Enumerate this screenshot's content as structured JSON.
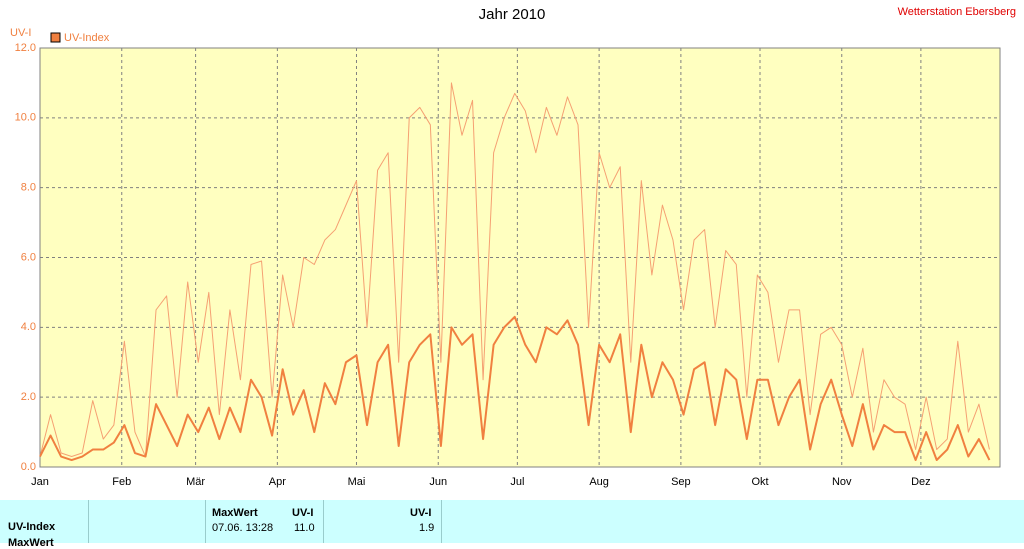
{
  "chart_data": {
    "type": "line",
    "title": "Jahr 2010",
    "station": "Wetterstation Ebersberg",
    "y_label": "UV-I",
    "x": [
      0,
      4,
      8,
      12,
      16,
      20,
      24,
      28,
      32,
      36,
      40,
      44,
      48,
      52,
      56,
      60,
      64,
      68,
      72,
      76,
      80,
      84,
      88,
      92,
      96,
      100,
      104,
      108,
      112,
      116,
      120,
      124,
      128,
      132,
      136,
      140,
      144,
      148,
      152,
      156,
      160,
      164,
      168,
      172,
      176,
      180,
      184,
      188,
      192,
      196,
      200,
      204,
      208,
      212,
      216,
      220,
      224,
      228,
      232,
      236,
      240,
      244,
      248,
      252,
      256,
      260,
      264,
      268,
      272,
      276,
      280,
      284,
      288,
      292,
      296,
      300,
      304,
      308,
      312,
      316,
      320,
      324,
      328,
      332,
      336,
      340,
      344,
      348,
      352,
      356,
      360
    ],
    "series": [
      {
        "name": "UV-Index",
        "color": "#f5a072",
        "width": 1,
        "values": [
          0.3,
          1.5,
          0.4,
          0.3,
          0.4,
          1.9,
          0.8,
          1.2,
          3.6,
          1.0,
          0.3,
          4.5,
          4.9,
          2.0,
          5.3,
          3.0,
          5.0,
          1.5,
          4.5,
          2.5,
          5.8,
          5.9,
          2.0,
          5.5,
          4.0,
          6.0,
          5.8,
          6.5,
          6.8,
          7.5,
          8.2,
          4.0,
          8.5,
          9.0,
          3.0,
          10.0,
          10.3,
          9.8,
          3.0,
          11.0,
          9.5,
          10.5,
          2.5,
          9.0,
          10.0,
          10.7,
          10.2,
          9.0,
          10.3,
          9.5,
          10.6,
          9.8,
          4.0,
          9.0,
          8.0,
          8.6,
          3.0,
          8.2,
          5.5,
          7.5,
          6.5,
          4.5,
          6.5,
          6.8,
          4.0,
          6.2,
          5.8,
          2.0,
          5.5,
          5.0,
          3.0,
          4.5,
          4.5,
          1.5,
          3.8,
          4.0,
          3.5,
          2.0,
          3.4,
          1.0,
          2.5,
          2.0,
          1.8,
          0.5,
          2.0,
          0.5,
          0.8,
          3.6,
          1.0,
          1.8,
          0.5
        ]
      },
      {
        "color": "#f08040",
        "width": 2,
        "values": [
          0.3,
          0.9,
          0.3,
          0.2,
          0.3,
          0.5,
          0.5,
          0.7,
          1.2,
          0.4,
          0.3,
          1.8,
          1.2,
          0.6,
          1.5,
          1.0,
          1.7,
          0.8,
          1.7,
          1.0,
          2.5,
          2.0,
          0.9,
          2.8,
          1.5,
          2.2,
          1.0,
          2.4,
          1.8,
          3.0,
          3.2,
          1.2,
          3.0,
          3.5,
          0.6,
          3.0,
          3.5,
          3.8,
          0.6,
          4.0,
          3.5,
          3.8,
          0.8,
          3.5,
          4.0,
          4.3,
          3.5,
          3.0,
          4.0,
          3.8,
          4.2,
          3.5,
          1.2,
          3.5,
          3.0,
          3.8,
          1.0,
          3.5,
          2.0,
          3.0,
          2.5,
          1.5,
          2.8,
          3.0,
          1.2,
          2.8,
          2.5,
          0.8,
          2.5,
          2.5,
          1.2,
          2.0,
          2.5,
          0.5,
          1.8,
          2.5,
          1.5,
          0.6,
          1.8,
          0.5,
          1.2,
          1.0,
          1.0,
          0.2,
          1.0,
          0.2,
          0.5,
          1.2,
          0.3,
          0.8,
          0.2
        ]
      }
    ],
    "xlim": [
      0,
      364
    ],
    "xticks": [
      {
        "value": 0,
        "label": "Jan"
      },
      {
        "value": 31,
        "label": "Feb"
      },
      {
        "value": 59,
        "label": "Mär"
      },
      {
        "value": 90,
        "label": "Apr"
      },
      {
        "value": 120,
        "label": "Mai"
      },
      {
        "value": 151,
        "label": "Jun"
      },
      {
        "value": 181,
        "label": "Jul"
      },
      {
        "value": 212,
        "label": "Aug"
      },
      {
        "value": 243,
        "label": "Sep"
      },
      {
        "value": 273,
        "label": "Okt"
      },
      {
        "value": 304,
        "label": "Nov"
      },
      {
        "value": 334,
        "label": "Dez"
      }
    ],
    "ylim": [
      0,
      12
    ],
    "yticks": [
      {
        "value": 0,
        "label": "0.0"
      },
      {
        "value": 2,
        "label": "2.0"
      },
      {
        "value": 4,
        "label": "4.0"
      },
      {
        "value": 6,
        "label": "6.0"
      },
      {
        "value": 8,
        "label": "8.0"
      },
      {
        "value": 10,
        "label": "10.0"
      },
      {
        "value": 12,
        "label": "12.0"
      }
    ],
    "grid": true
  },
  "footer": {
    "row_label": "UV-Index",
    "next_row": "MaxWert",
    "max_header": "MaxWert",
    "max_unit": "UV-I",
    "max_time": "07.06. 13:28",
    "max_value": "11.0",
    "mean_unit": "UV-I",
    "mean_value": "1.9"
  }
}
